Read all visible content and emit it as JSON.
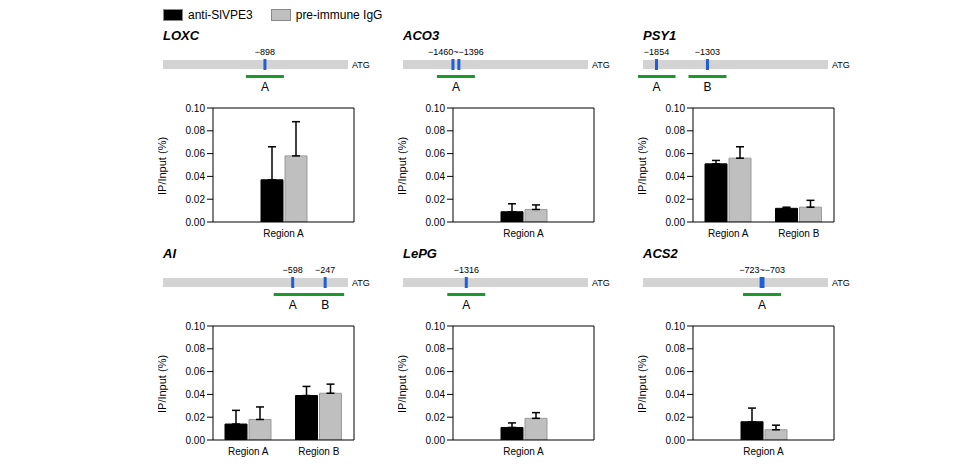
{
  "chart_data": [
    {
      "type": "bar",
      "title": "LOXC",
      "ylabel": "IP/Input (%)",
      "categories": [
        "Region A"
      ],
      "series": [
        {
          "name": "anti-SlVPE3",
          "color": "#000000",
          "values": [
            0.037
          ],
          "errors": [
            0.029
          ]
        },
        {
          "name": "pre-immune IgG",
          "color": "#bfbfbf",
          "values": [
            0.058
          ],
          "errors": [
            0.03
          ]
        }
      ],
      "ylim": [
        0,
        0.1
      ],
      "yticks": [
        {
          "value": 0,
          "label": "0.00"
        },
        {
          "value": 0.02,
          "label": "0.02"
        },
        {
          "value": 0.04,
          "label": "0.04"
        },
        {
          "value": 0.06,
          "label": "0.06"
        },
        {
          "value": 0.08,
          "label": "0.08"
        },
        {
          "value": 0.1,
          "label": "0.10"
        }
      ],
      "sites": [
        -898
      ],
      "site_labels": [
        "−898"
      ],
      "regions": [
        "A"
      ],
      "gene_end_label": "ATG"
    },
    {
      "type": "bar",
      "title": "ACO3",
      "ylabel": "IP/Input (%)",
      "categories": [
        "Region A"
      ],
      "series": [
        {
          "name": "anti-SlVPE3",
          "color": "#000000",
          "values": [
            0.009
          ],
          "errors": [
            0.007
          ]
        },
        {
          "name": "pre-immune IgG",
          "color": "#bfbfbf",
          "values": [
            0.011
          ],
          "errors": [
            0.004
          ]
        }
      ],
      "ylim": [
        0,
        0.1
      ],
      "yticks": [
        {
          "value": 0,
          "label": "0.00"
        },
        {
          "value": 0.02,
          "label": "0.02"
        },
        {
          "value": 0.04,
          "label": "0.04"
        },
        {
          "value": 0.06,
          "label": "0.06"
        },
        {
          "value": 0.08,
          "label": "0.08"
        },
        {
          "value": 0.1,
          "label": "0.10"
        }
      ],
      "sites": [
        -1460,
        -1396
      ],
      "site_labels": [
        "−1460~−1396"
      ],
      "regions": [
        "A"
      ],
      "gene_end_label": "ATG"
    },
    {
      "type": "bar",
      "title": "PSY1",
      "ylabel": "IP/Input (%)",
      "categories": [
        "Region A",
        "Region B"
      ],
      "series": [
        {
          "name": "anti-SlVPE3",
          "color": "#000000",
          "values": [
            0.051,
            0.012
          ],
          "errors": [
            0.003,
            0.001
          ]
        },
        {
          "name": "pre-immune IgG",
          "color": "#bfbfbf",
          "values": [
            0.056,
            0.013
          ],
          "errors": [
            0.01,
            0.006
          ]
        }
      ],
      "ylim": [
        0,
        0.1
      ],
      "yticks": [
        {
          "value": 0,
          "label": "0.00"
        },
        {
          "value": 0.02,
          "label": "0.02"
        },
        {
          "value": 0.04,
          "label": "0.04"
        },
        {
          "value": 0.06,
          "label": "0.06"
        },
        {
          "value": 0.08,
          "label": "0.08"
        },
        {
          "value": 0.1,
          "label": "0.10"
        }
      ],
      "sites": [
        -1854,
        -1303
      ],
      "site_labels": [
        "−1854",
        "−1303"
      ],
      "regions": [
        "A",
        "B"
      ],
      "gene_end_label": "ATG"
    },
    {
      "type": "bar",
      "title": "AI",
      "ylabel": "IP/Input (%)",
      "categories": [
        "Region A",
        "Region B"
      ],
      "series": [
        {
          "name": "anti-SlVPE3",
          "color": "#000000",
          "values": [
            0.014,
            0.039
          ],
          "errors": [
            0.012,
            0.008
          ]
        },
        {
          "name": "pre-immune IgG",
          "color": "#bfbfbf",
          "values": [
            0.018,
            0.041
          ],
          "errors": [
            0.011,
            0.008
          ]
        }
      ],
      "ylim": [
        0,
        0.1
      ],
      "yticks": [
        {
          "value": 0,
          "label": "0.00"
        },
        {
          "value": 0.02,
          "label": "0.02"
        },
        {
          "value": 0.04,
          "label": "0.04"
        },
        {
          "value": 0.06,
          "label": "0.06"
        },
        {
          "value": 0.08,
          "label": "0.08"
        },
        {
          "value": 0.1,
          "label": "0.10"
        }
      ],
      "sites": [
        -598,
        -247
      ],
      "site_labels": [
        "−598",
        "−247"
      ],
      "regions": [
        "A",
        "B"
      ],
      "gene_end_label": "ATG"
    },
    {
      "type": "bar",
      "title": "LePG",
      "ylabel": "IP/Input (%)",
      "categories": [
        "Region A"
      ],
      "series": [
        {
          "name": "anti-SlVPE3",
          "color": "#000000",
          "values": [
            0.011
          ],
          "errors": [
            0.004
          ]
        },
        {
          "name": "pre-immune IgG",
          "color": "#bfbfbf",
          "values": [
            0.019
          ],
          "errors": [
            0.005
          ]
        }
      ],
      "ylim": [
        0,
        0.1
      ],
      "yticks": [
        {
          "value": 0,
          "label": "0.00"
        },
        {
          "value": 0.02,
          "label": "0.02"
        },
        {
          "value": 0.04,
          "label": "0.04"
        },
        {
          "value": 0.06,
          "label": "0.06"
        },
        {
          "value": 0.08,
          "label": "0.08"
        },
        {
          "value": 0.1,
          "label": "0.10"
        }
      ],
      "sites": [
        -1316
      ],
      "site_labels": [
        "−1316"
      ],
      "regions": [
        "A"
      ],
      "gene_end_label": "ATG"
    },
    {
      "type": "bar",
      "title": "ACS2",
      "ylabel": "IP/Input (%)",
      "categories": [
        "Region A"
      ],
      "series": [
        {
          "name": "anti-SlVPE3",
          "color": "#000000",
          "values": [
            0.016
          ],
          "errors": [
            0.012
          ]
        },
        {
          "name": "pre-immune IgG",
          "color": "#bfbfbf",
          "values": [
            0.009
          ],
          "errors": [
            0.004
          ]
        }
      ],
      "ylim": [
        0,
        0.1
      ],
      "yticks": [
        {
          "value": 0,
          "label": "0.00"
        },
        {
          "value": 0.02,
          "label": "0.02"
        },
        {
          "value": 0.04,
          "label": "0.04"
        },
        {
          "value": 0.06,
          "label": "0.06"
        },
        {
          "value": 0.08,
          "label": "0.08"
        },
        {
          "value": 0.1,
          "label": "0.10"
        }
      ],
      "sites": [
        -723,
        -703
      ],
      "site_labels": [
        "−723~−703"
      ],
      "regions": [
        "A"
      ],
      "gene_end_label": "ATG"
    }
  ]
}
